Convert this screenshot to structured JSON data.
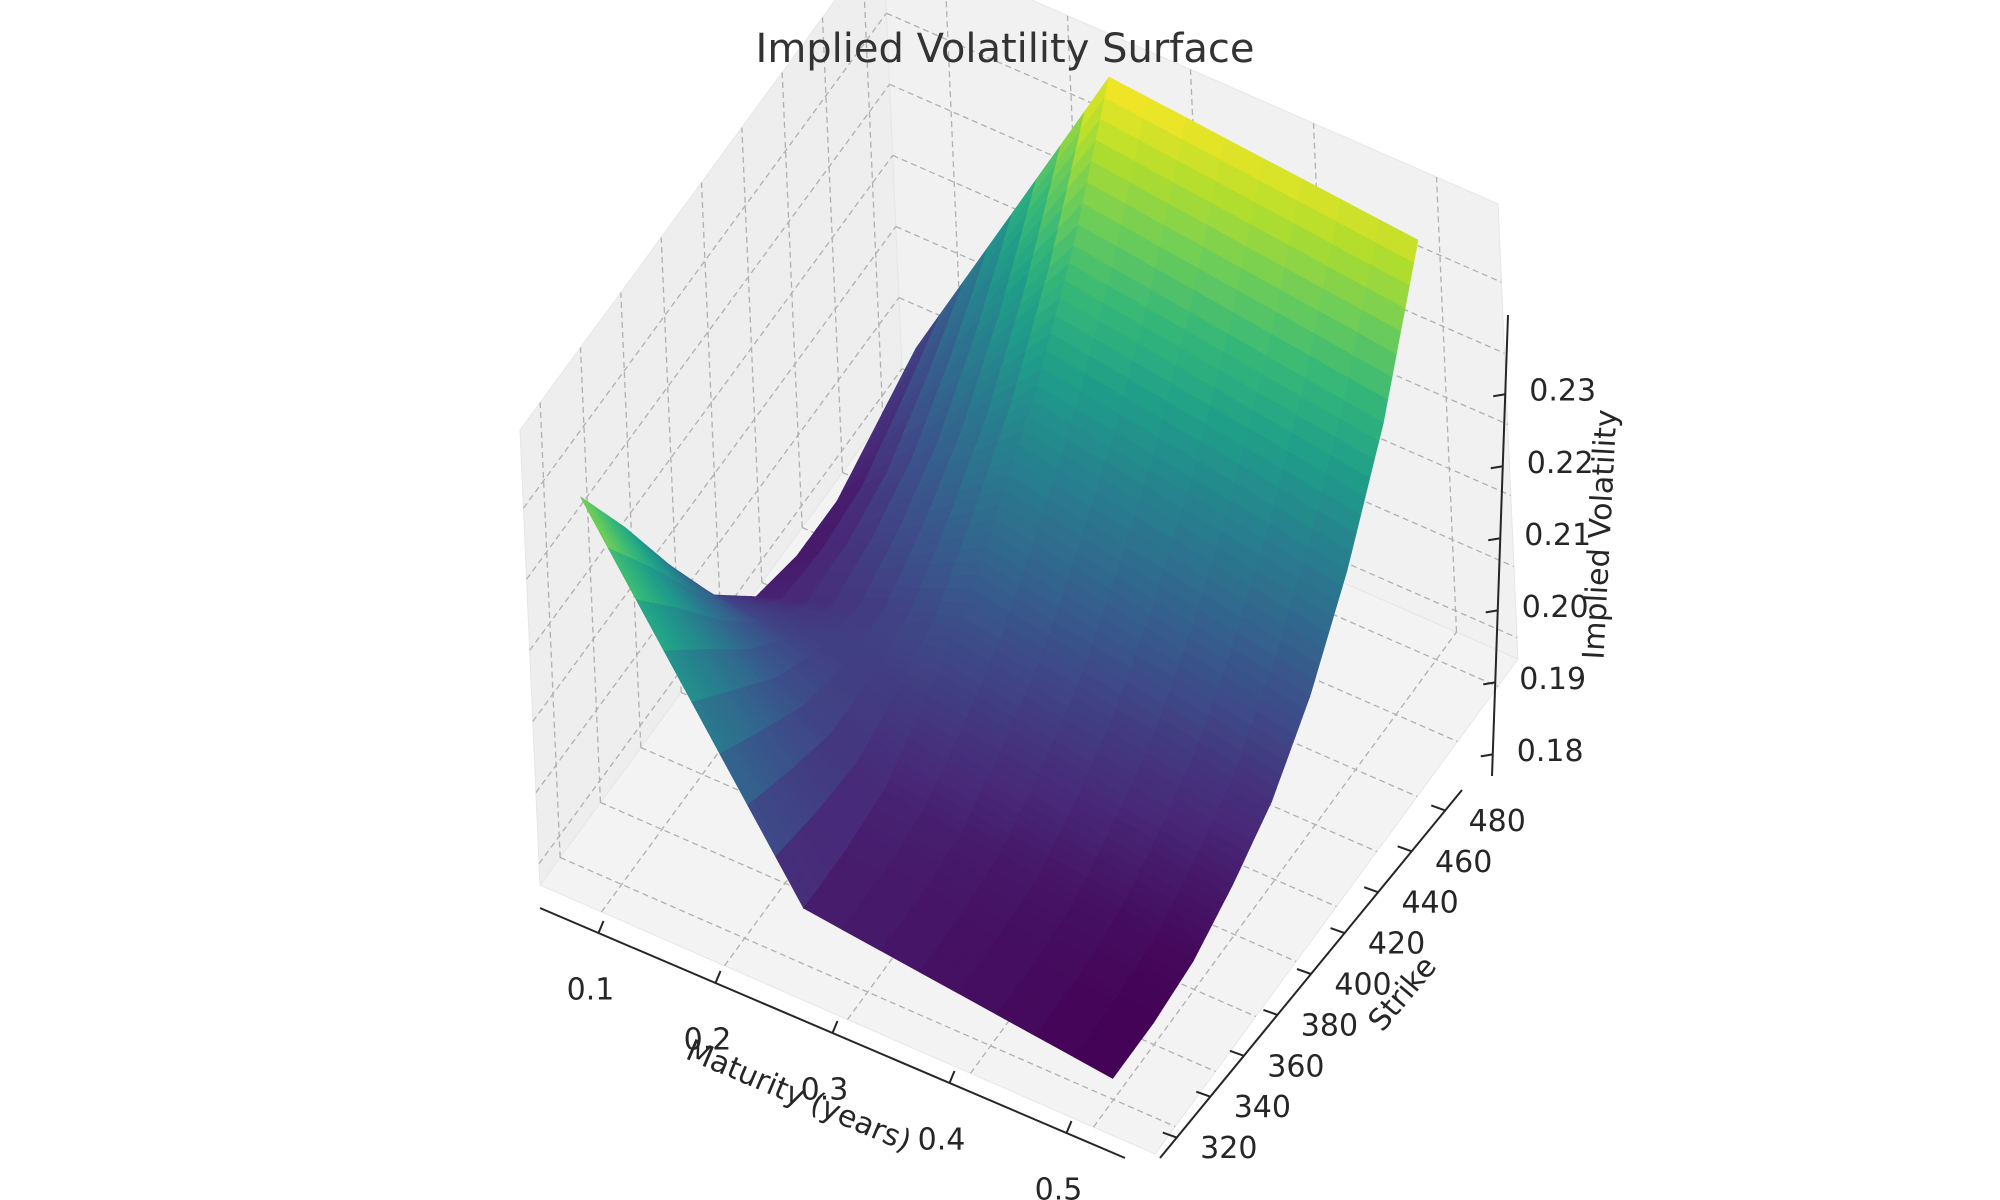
{
  "chart_data": {
    "type": "surface3d",
    "title": "Implied Volatility Surface",
    "xlabel": "Maturity (years)",
    "ylabel": "Strike",
    "zlabel": "Implied Volatility",
    "colormap": "viridis",
    "x_ticks": [
      "0.1",
      "0.2",
      "0.3",
      "0.4",
      "0.5"
    ],
    "y_ticks": [
      "320",
      "340",
      "360",
      "380",
      "400",
      "420",
      "440",
      "460",
      "480"
    ],
    "z_ticks": [
      "0.18",
      "0.19",
      "0.20",
      "0.21",
      "0.22",
      "0.23"
    ],
    "xlim": [
      0.05,
      0.55
    ],
    "ylim": [
      310,
      490
    ],
    "zlim": [
      0.177,
      0.241
    ],
    "maturities": [
      0.08,
      0.25,
      0.5
    ],
    "strikes": [
      320,
      340,
      360,
      380,
      400,
      420,
      440,
      460,
      480
    ],
    "implied_vol": [
      [
        0.23,
        0.218,
        0.205,
        0.193,
        0.185,
        0.183,
        0.183,
        0.186,
        0.189
      ],
      [
        0.185,
        0.185,
        0.186,
        0.19,
        0.195,
        0.203,
        0.212,
        0.224,
        0.24
      ],
      [
        0.18,
        0.18,
        0.181,
        0.184,
        0.188,
        0.195,
        0.205,
        0.218,
        0.236
      ]
    ],
    "grid": true
  }
}
